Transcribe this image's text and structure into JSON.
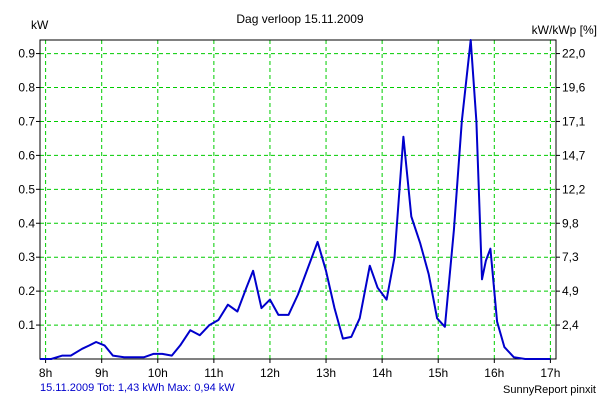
{
  "chart_data": {
    "type": "line",
    "title": "Dag  verloop 15.11.2009",
    "ylabel_left": "kW",
    "ylabel_right": "kW/kWp [%]",
    "xlim": [
      7.9,
      17.1
    ],
    "ylim": [
      0.0,
      0.94
    ],
    "x_ticks": [
      {
        "value": 8,
        "label": "8h"
      },
      {
        "value": 9,
        "label": "9h"
      },
      {
        "value": 10,
        "label": "10h"
      },
      {
        "value": 11,
        "label": "11h"
      },
      {
        "value": 12,
        "label": "12h"
      },
      {
        "value": 13,
        "label": "13h"
      },
      {
        "value": 14,
        "label": "14h"
      },
      {
        "value": 15,
        "label": "15h"
      },
      {
        "value": 16,
        "label": "16h"
      },
      {
        "value": 17,
        "label": "17h"
      }
    ],
    "y_ticks_left": [
      {
        "value": 0.1,
        "label": "0.1"
      },
      {
        "value": 0.2,
        "label": "0.2"
      },
      {
        "value": 0.3,
        "label": "0.3"
      },
      {
        "value": 0.4,
        "label": "0.4"
      },
      {
        "value": 0.5,
        "label": "0.5"
      },
      {
        "value": 0.6,
        "label": "0.6"
      },
      {
        "value": 0.7,
        "label": "0.7"
      },
      {
        "value": 0.8,
        "label": "0.8"
      },
      {
        "value": 0.9,
        "label": "0.9"
      }
    ],
    "y_ticks_right": [
      {
        "value": 0.1,
        "label": "2,4"
      },
      {
        "value": 0.2,
        "label": "4,9"
      },
      {
        "value": 0.3,
        "label": "7,3"
      },
      {
        "value": 0.4,
        "label": "9,8"
      },
      {
        "value": 0.5,
        "label": "12,2"
      },
      {
        "value": 0.6,
        "label": "14,7"
      },
      {
        "value": 0.7,
        "label": "17,1"
      },
      {
        "value": 0.8,
        "label": "19,6"
      },
      {
        "value": 0.9,
        "label": "22,0"
      }
    ],
    "grid": true,
    "series": [
      {
        "color": "#0000cc",
        "x": [
          7.9,
          8.1,
          8.3,
          8.45,
          8.65,
          8.78,
          8.9,
          9.05,
          9.2,
          9.4,
          9.6,
          9.75,
          9.92,
          10.08,
          10.25,
          10.4,
          10.58,
          10.75,
          10.92,
          11.08,
          11.25,
          11.42,
          11.58,
          11.7,
          11.85,
          12.0,
          12.15,
          12.33,
          12.5,
          12.68,
          12.85,
          13.0,
          13.15,
          13.3,
          13.45,
          13.6,
          13.78,
          13.92,
          14.08,
          14.22,
          14.38,
          14.52,
          14.68,
          14.83,
          14.98,
          15.12,
          15.28,
          15.42,
          15.58,
          15.68,
          15.78,
          15.85,
          15.93,
          16.05,
          16.18,
          16.35,
          16.55,
          16.8,
          17.0
        ],
        "y": [
          0.0,
          0.0,
          0.01,
          0.01,
          0.03,
          0.04,
          0.05,
          0.04,
          0.01,
          0.005,
          0.005,
          0.005,
          0.015,
          0.015,
          0.01,
          0.04,
          0.085,
          0.07,
          0.1,
          0.115,
          0.16,
          0.14,
          0.21,
          0.26,
          0.15,
          0.175,
          0.13,
          0.13,
          0.19,
          0.27,
          0.345,
          0.26,
          0.15,
          0.06,
          0.065,
          0.12,
          0.275,
          0.21,
          0.175,
          0.3,
          0.655,
          0.42,
          0.34,
          0.25,
          0.12,
          0.095,
          0.38,
          0.7,
          0.94,
          0.7,
          0.235,
          0.29,
          0.325,
          0.11,
          0.035,
          0.005,
          0.0,
          0.0,
          0.0
        ]
      }
    ]
  },
  "footer": {
    "left": "15.11.2009 Tot: 1,43 kWh Max: 0,94 kW",
    "right": "SunnyReport pinxit",
    "left_color": "#0000cc"
  }
}
